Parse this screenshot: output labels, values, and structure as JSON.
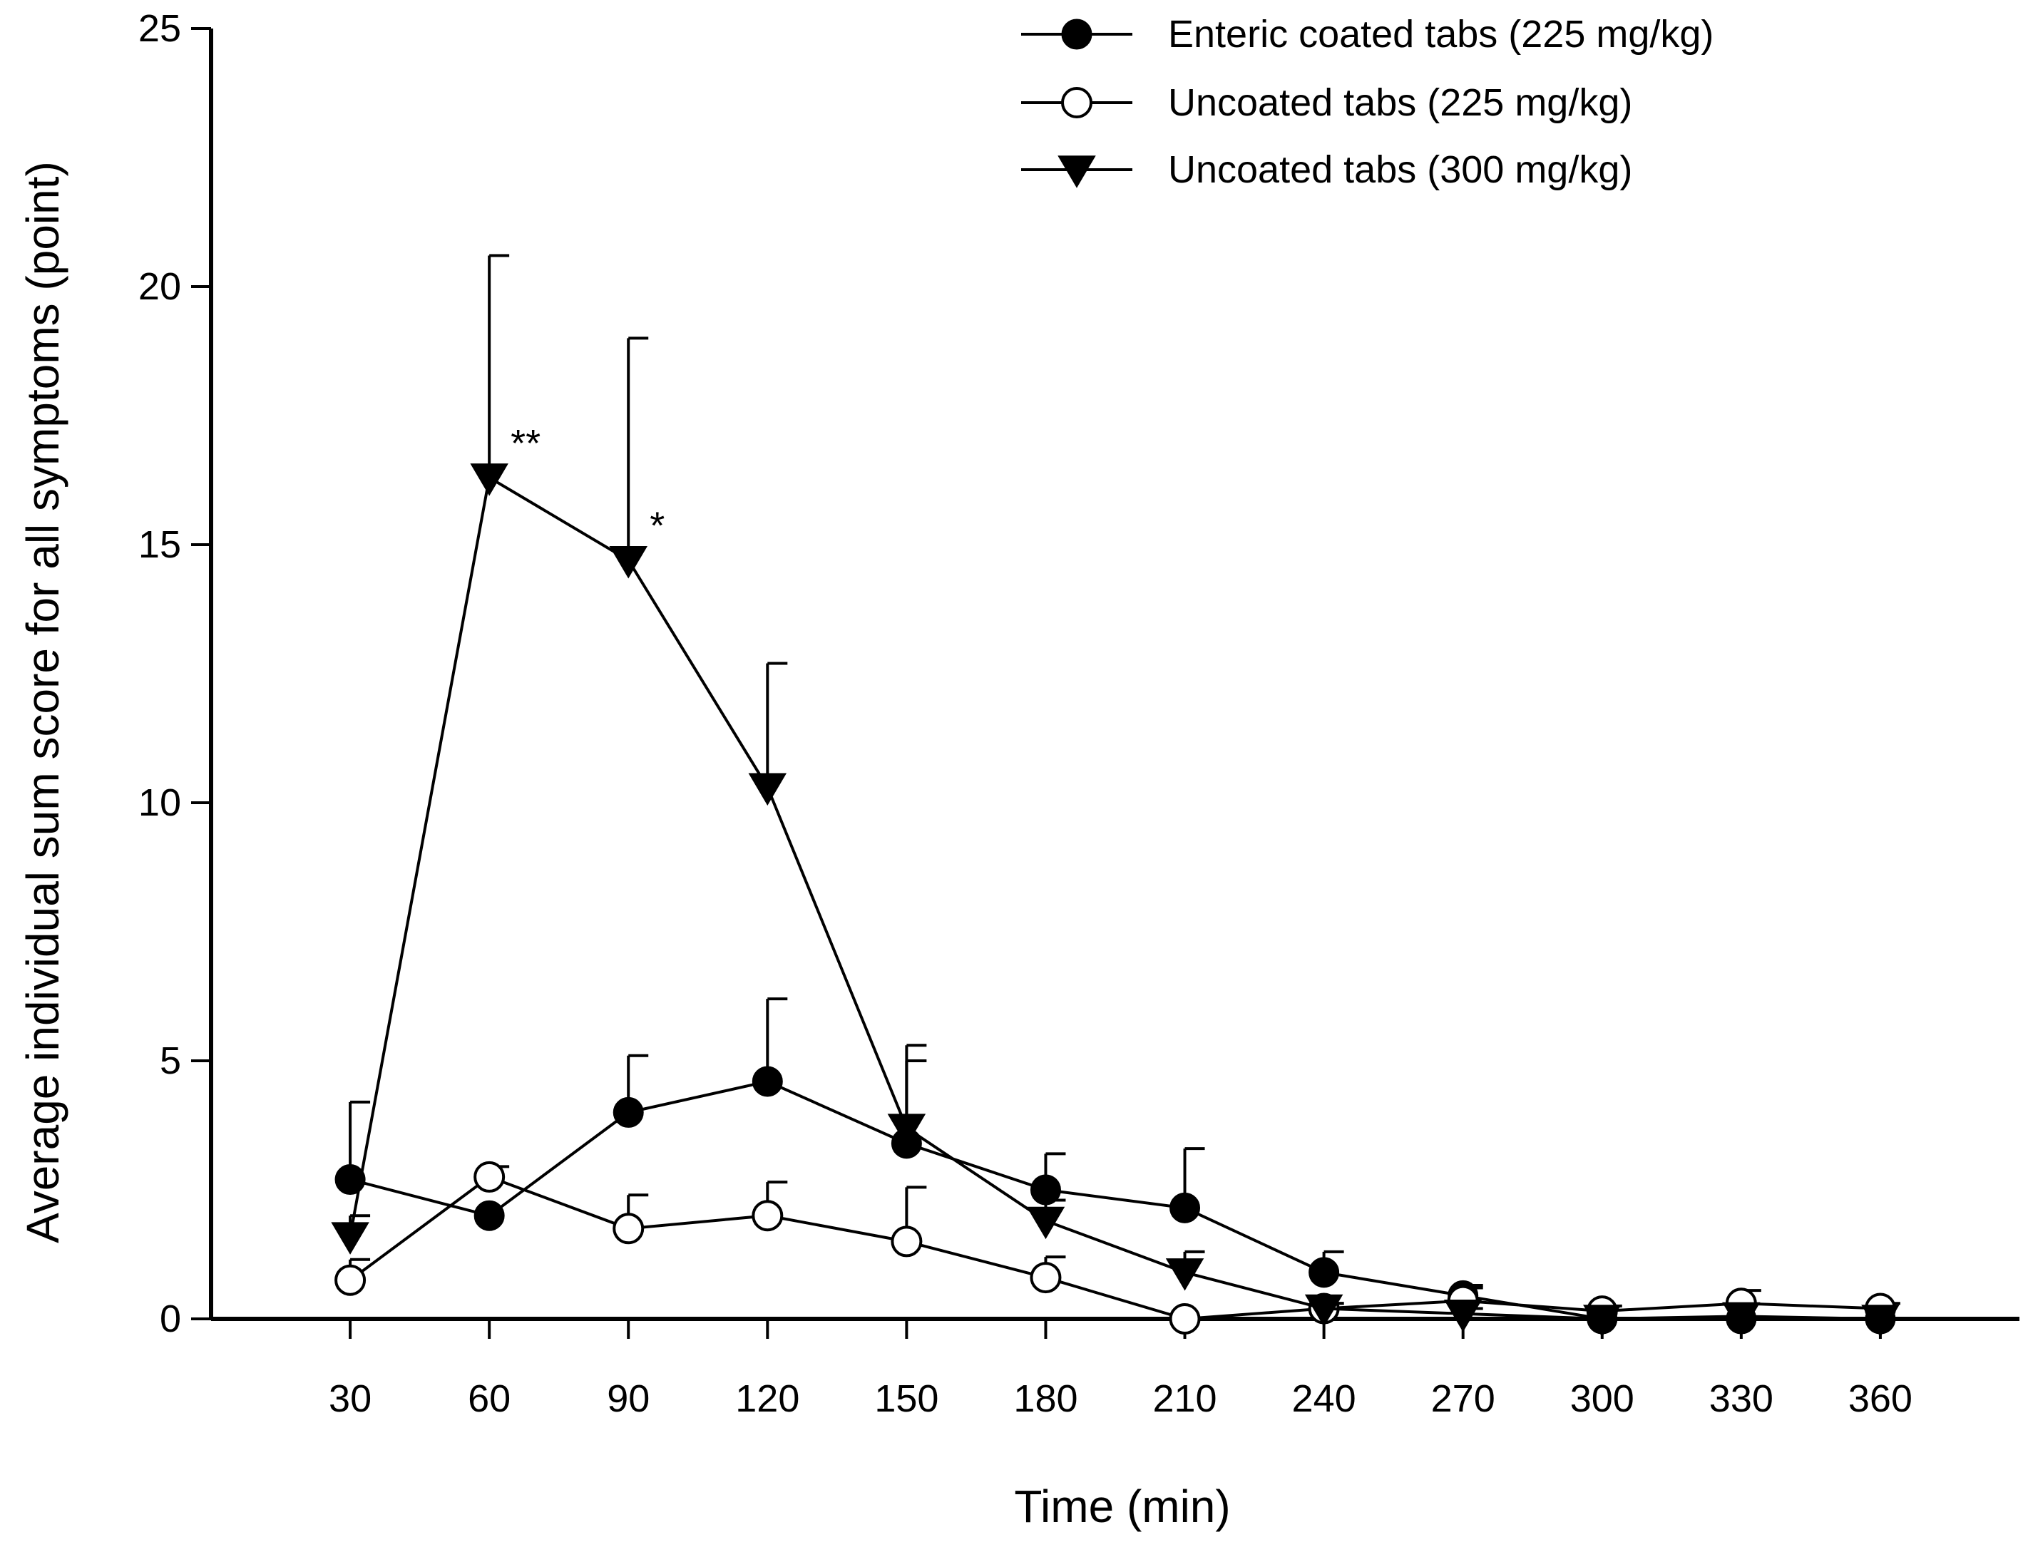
{
  "chart_data": {
    "type": "line",
    "title": "",
    "xlabel": "Time (min)",
    "ylabel": "Average individual sum score for all symptoms (point)",
    "x": [
      30,
      60,
      90,
      120,
      150,
      180,
      210,
      240,
      270,
      300,
      330,
      360
    ],
    "xlim": [
      0,
      390
    ],
    "ylim": [
      0,
      25
    ],
    "yticks": [
      0,
      5,
      10,
      15,
      20,
      25
    ],
    "xticks": [
      30,
      60,
      90,
      120,
      150,
      180,
      210,
      240,
      270,
      300,
      330,
      360
    ],
    "grid": false,
    "legend_position": "top-right",
    "series": [
      {
        "name": "Enteric coated tabs (225 mg/kg)",
        "marker": "filled-circle",
        "values": [
          2.7,
          2.0,
          4.0,
          4.6,
          3.4,
          2.5,
          2.15,
          0.9,
          0.45,
          0.0,
          0.0,
          0.0
        ],
        "errors": [
          1.5,
          0.0,
          1.1,
          1.6,
          1.6,
          0.7,
          1.15,
          0.4,
          0.2,
          0.0,
          0.0,
          0.0
        ]
      },
      {
        "name": "Uncoated tabs (225 mg/kg)",
        "marker": "open-circle",
        "values": [
          0.75,
          2.75,
          1.75,
          2.0,
          1.5,
          0.8,
          0.0,
          0.2,
          0.35,
          0.15,
          0.3,
          0.2
        ],
        "errors": [
          0.4,
          0.2,
          0.65,
          0.65,
          1.05,
          0.4,
          0.0,
          0.1,
          0.25,
          0.1,
          0.25,
          0.1
        ]
      },
      {
        "name": "Uncoated tabs (300 mg/kg)",
        "marker": "filled-triangle-down",
        "values": [
          1.6,
          16.3,
          14.7,
          10.3,
          3.7,
          1.9,
          0.9,
          0.2,
          0.1,
          0.0,
          0.05,
          0.0
        ],
        "errors": [
          0.4,
          4.3,
          4.3,
          2.4,
          1.6,
          0.4,
          0.4,
          0.1,
          0.1,
          0.0,
          0.0,
          0.0
        ]
      }
    ],
    "annotations": [
      {
        "text": "**",
        "x": 60,
        "y": 16.3,
        "series": 2
      },
      {
        "text": "*",
        "x": 90,
        "y": 14.7,
        "series": 2
      }
    ]
  }
}
